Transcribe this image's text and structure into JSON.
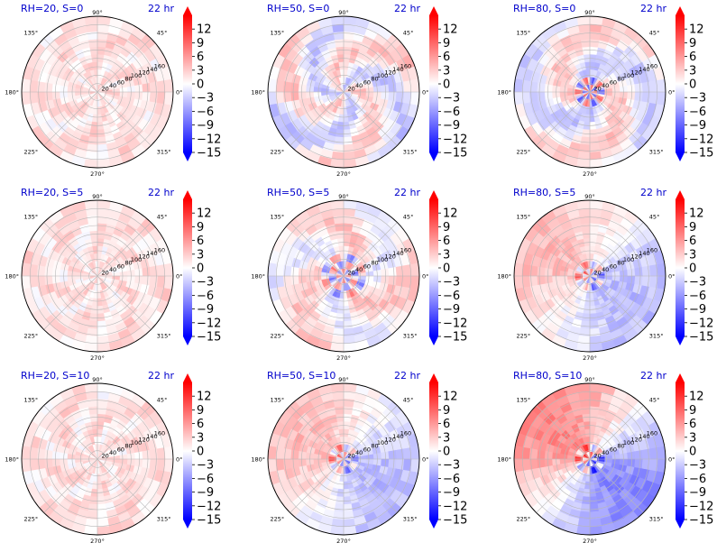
{
  "chart_data": {
    "type": "heatmap",
    "subtype": "polar",
    "grid": true,
    "colormap": "bwr",
    "color_range": [
      -15,
      15
    ],
    "colorbar_ticks": [
      12,
      9,
      6,
      3,
      0,
      -3,
      -6,
      -9,
      -12,
      -15
    ],
    "colorbar_extend": "both",
    "angle_ticks": [
      "90°",
      "45°",
      "0°",
      "315°",
      "270°",
      "225°",
      "180°",
      "135°"
    ],
    "radial_ticks": [
      "20",
      "40",
      "60",
      "80",
      "100",
      "120",
      "140",
      "160"
    ],
    "radial_range": [
      0,
      180
    ],
    "time_label": "22 hr",
    "panels": [
      {
        "title": "RH=20, S=0",
        "row": 0,
        "col": 0,
        "pattern": "weak-positive"
      },
      {
        "title": "RH=50, S=0",
        "row": 0,
        "col": 1,
        "pattern": "mixed"
      },
      {
        "title": "RH=80, S=0",
        "row": 0,
        "col": 2,
        "pattern": "mixed-strong-core"
      },
      {
        "title": "RH=20, S=5",
        "row": 1,
        "col": 0,
        "pattern": "weak-positive"
      },
      {
        "title": "RH=50, S=5",
        "row": 1,
        "col": 1,
        "pattern": "mixed-core"
      },
      {
        "title": "RH=80, S=5",
        "row": 1,
        "col": 2,
        "pattern": "dipole"
      },
      {
        "title": "RH=20, S=10",
        "row": 2,
        "col": 0,
        "pattern": "weak-positive"
      },
      {
        "title": "RH=50, S=10",
        "row": 2,
        "col": 1,
        "pattern": "dipole"
      },
      {
        "title": "RH=80, S=10",
        "row": 2,
        "col": 2,
        "pattern": "strong-dipole"
      }
    ]
  },
  "colors": {
    "title": "#0000cc",
    "cmap_low": "#0000ff",
    "cmap_mid": "#ffffff",
    "cmap_high": "#ff0000",
    "grid": "#b8b8b8"
  }
}
